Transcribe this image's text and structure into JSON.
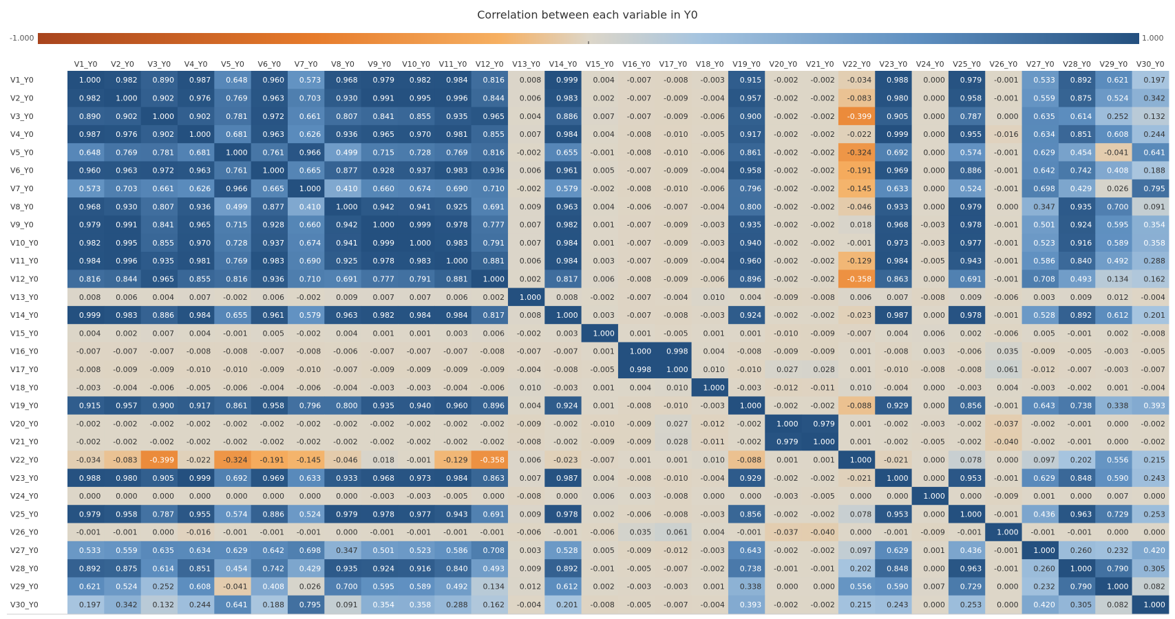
{
  "chart_data": {
    "type": "heatmap",
    "title": "Correlation between each variable in Y0",
    "legend": {
      "min_label": "-1.000",
      "max_label": "1.000",
      "min": -1,
      "max": 1,
      "placement": "top",
      "colors": {
        "negative": "#b5532a",
        "mid": "#ddd6c8",
        "positive": "#2b5b8f"
      }
    },
    "grid": false,
    "x_categories": [
      "V1_Y0",
      "V2_Y0",
      "V3_Y0",
      "V4_Y0",
      "V5_Y0",
      "V6_Y0",
      "V7_Y0",
      "V8_Y0",
      "V9_Y0",
      "V10_Y0",
      "V11_Y0",
      "V12_Y0",
      "V13_Y0",
      "V14_Y0",
      "V15_Y0",
      "V16_Y0",
      "V17_Y0",
      "V18_Y0",
      "V19_Y0",
      "V20_Y0",
      "V21_Y0",
      "V22_Y0",
      "V23_Y0",
      "V24_Y0",
      "V25_Y0",
      "V26_Y0",
      "V27_Y0",
      "V28_Y0",
      "V29_Y0",
      "V30_Y0"
    ],
    "y_categories": [
      "V1_Y0",
      "V2_Y0",
      "V3_Y0",
      "V4_Y0",
      "V5_Y0",
      "V6_Y0",
      "V7_Y0",
      "V8_Y0",
      "V9_Y0",
      "V10_Y0",
      "V11_Y0",
      "V12_Y0",
      "V13_Y0",
      "V14_Y0",
      "V15_Y0",
      "V16_Y0",
      "V17_Y0",
      "V18_Y0",
      "V19_Y0",
      "V20_Y0",
      "V21_Y0",
      "V22_Y0",
      "V23_Y0",
      "V24_Y0",
      "V25_Y0",
      "V26_Y0",
      "V27_Y0",
      "V28_Y0",
      "V29_Y0",
      "V30_Y0"
    ],
    "values": [
      [
        1.0,
        0.982,
        0.89,
        0.987,
        0.648,
        0.96,
        0.573,
        0.968,
        0.979,
        0.982,
        0.984,
        0.816,
        0.008,
        0.999,
        0.004,
        -0.007,
        -0.008,
        -0.003,
        0.915,
        -0.002,
        -0.002,
        -0.034,
        0.988,
        0.0,
        0.979,
        -0.001,
        0.533,
        0.892,
        0.621,
        0.197
      ],
      [
        0.982,
        1.0,
        0.902,
        0.976,
        0.769,
        0.963,
        0.703,
        0.93,
        0.991,
        0.995,
        0.996,
        0.844,
        0.006,
        0.983,
        0.002,
        -0.007,
        -0.009,
        -0.004,
        0.957,
        -0.002,
        -0.002,
        -0.083,
        0.98,
        0.0,
        0.958,
        -0.001,
        0.559,
        0.875,
        0.524,
        0.342
      ],
      [
        0.89,
        0.902,
        1.0,
        0.902,
        0.781,
        0.972,
        0.661,
        0.807,
        0.841,
        0.855,
        0.935,
        0.965,
        0.004,
        0.886,
        0.007,
        -0.007,
        -0.009,
        -0.006,
        0.9,
        -0.002,
        -0.002,
        -0.399,
        0.905,
        0.0,
        0.787,
        0.0,
        0.635,
        0.614,
        0.252,
        0.132
      ],
      [
        0.987,
        0.976,
        0.902,
        1.0,
        0.681,
        0.963,
        0.626,
        0.936,
        0.965,
        0.97,
        0.981,
        0.855,
        0.007,
        0.984,
        0.004,
        -0.008,
        -0.01,
        -0.005,
        0.917,
        -0.002,
        -0.002,
        -0.022,
        0.999,
        0.0,
        0.955,
        -0.016,
        0.634,
        0.851,
        0.608,
        0.244
      ],
      [
        0.648,
        0.769,
        0.781,
        0.681,
        1.0,
        0.761,
        0.966,
        0.499,
        0.715,
        0.728,
        0.769,
        0.816,
        -0.002,
        0.655,
        -0.001,
        -0.008,
        -0.01,
        -0.006,
        0.861,
        -0.002,
        -0.002,
        -0.324,
        0.692,
        0.0,
        0.574,
        -0.001,
        0.629,
        0.454,
        -0.041,
        0.641
      ],
      [
        0.96,
        0.963,
        0.972,
        0.963,
        0.761,
        1.0,
        0.665,
        0.877,
        0.928,
        0.937,
        0.983,
        0.936,
        0.006,
        0.961,
        0.005,
        -0.007,
        -0.009,
        -0.004,
        0.958,
        -0.002,
        -0.002,
        -0.191,
        0.969,
        0.0,
        0.886,
        -0.001,
        0.642,
        0.742,
        0.408,
        0.188
      ],
      [
        0.573,
        0.703,
        0.661,
        0.626,
        0.966,
        0.665,
        1.0,
        0.41,
        0.66,
        0.674,
        0.69,
        0.71,
        -0.002,
        0.579,
        -0.002,
        -0.008,
        -0.01,
        -0.006,
        0.796,
        -0.002,
        -0.002,
        -0.145,
        0.633,
        0.0,
        0.524,
        -0.001,
        0.698,
        0.429,
        0.026,
        0.795
      ],
      [
        0.968,
        0.93,
        0.807,
        0.936,
        0.499,
        0.877,
        0.41,
        1.0,
        0.942,
        0.941,
        0.925,
        0.691,
        0.009,
        0.963,
        0.004,
        -0.006,
        -0.007,
        -0.004,
        0.8,
        -0.002,
        -0.002,
        -0.046,
        0.933,
        0.0,
        0.979,
        0.0,
        0.347,
        0.935,
        0.7,
        0.091
      ],
      [
        0.979,
        0.991,
        0.841,
        0.965,
        0.715,
        0.928,
        0.66,
        0.942,
        1.0,
        0.999,
        0.978,
        0.777,
        0.007,
        0.982,
        0.001,
        -0.007,
        -0.009,
        -0.003,
        0.935,
        -0.002,
        -0.002,
        0.018,
        0.968,
        -0.003,
        0.978,
        -0.001,
        0.501,
        0.924,
        0.595,
        0.354
      ],
      [
        0.982,
        0.995,
        0.855,
        0.97,
        0.728,
        0.937,
        0.674,
        0.941,
        0.999,
        1.0,
        0.983,
        0.791,
        0.007,
        0.984,
        0.001,
        -0.007,
        -0.009,
        -0.003,
        0.94,
        -0.002,
        -0.002,
        -0.001,
        0.973,
        -0.003,
        0.977,
        -0.001,
        0.523,
        0.916,
        0.589,
        0.358
      ],
      [
        0.984,
        0.996,
        0.935,
        0.981,
        0.769,
        0.983,
        0.69,
        0.925,
        0.978,
        0.983,
        1.0,
        0.881,
        0.006,
        0.984,
        0.003,
        -0.007,
        -0.009,
        -0.004,
        0.96,
        -0.002,
        -0.002,
        -0.129,
        0.984,
        -0.005,
        0.943,
        -0.001,
        0.586,
        0.84,
        0.492,
        0.288
      ],
      [
        0.816,
        0.844,
        0.965,
        0.855,
        0.816,
        0.936,
        0.71,
        0.691,
        0.777,
        0.791,
        0.881,
        1.0,
        0.002,
        0.817,
        0.006,
        -0.008,
        -0.009,
        -0.006,
        0.896,
        -0.002,
        -0.002,
        -0.358,
        0.863,
        0.0,
        0.691,
        -0.001,
        0.708,
        0.493,
        0.134,
        0.162
      ],
      [
        0.008,
        0.006,
        0.004,
        0.007,
        -0.002,
        0.006,
        -0.002,
        0.009,
        0.007,
        0.007,
        0.006,
        0.002,
        1.0,
        0.008,
        -0.002,
        -0.007,
        -0.004,
        0.01,
        0.004,
        -0.009,
        -0.008,
        0.006,
        0.007,
        -0.008,
        0.009,
        -0.006,
        0.003,
        0.009,
        0.012,
        -0.004
      ],
      [
        0.999,
        0.983,
        0.886,
        0.984,
        0.655,
        0.961,
        0.579,
        0.963,
        0.982,
        0.984,
        0.984,
        0.817,
        0.008,
        1.0,
        0.003,
        -0.007,
        -0.008,
        -0.003,
        0.924,
        -0.002,
        -0.002,
        -0.023,
        0.987,
        0.0,
        0.978,
        -0.001,
        0.528,
        0.892,
        0.612,
        0.201
      ],
      [
        0.004,
        0.002,
        0.007,
        0.004,
        -0.001,
        0.005,
        -0.002,
        0.004,
        0.001,
        0.001,
        0.003,
        0.006,
        -0.002,
        0.003,
        1.0,
        0.001,
        -0.005,
        0.001,
        0.001,
        -0.01,
        -0.009,
        -0.007,
        0.004,
        0.006,
        0.002,
        -0.006,
        0.005,
        -0.001,
        0.002,
        -0.008
      ],
      [
        -0.007,
        -0.007,
        -0.007,
        -0.008,
        -0.008,
        -0.007,
        -0.008,
        -0.006,
        -0.007,
        -0.007,
        -0.007,
        -0.008,
        -0.007,
        -0.007,
        0.001,
        1.0,
        0.998,
        0.004,
        -0.008,
        -0.009,
        -0.009,
        0.001,
        -0.008,
        0.003,
        -0.006,
        0.035,
        -0.009,
        -0.005,
        -0.003,
        -0.005
      ],
      [
        -0.008,
        -0.009,
        -0.009,
        -0.01,
        -0.01,
        -0.009,
        -0.01,
        -0.007,
        -0.009,
        -0.009,
        -0.009,
        -0.009,
        -0.004,
        -0.008,
        -0.005,
        0.998,
        1.0,
        0.01,
        -0.01,
        0.027,
        0.028,
        0.001,
        -0.01,
        -0.008,
        -0.008,
        0.061,
        -0.012,
        -0.007,
        -0.003,
        -0.007
      ],
      [
        -0.003,
        -0.004,
        -0.006,
        -0.005,
        -0.006,
        -0.004,
        -0.006,
        -0.004,
        -0.003,
        -0.003,
        -0.004,
        -0.006,
        0.01,
        -0.003,
        0.001,
        0.004,
        0.01,
        1.0,
        -0.003,
        -0.012,
        -0.011,
        0.01,
        -0.004,
        0.0,
        -0.003,
        0.004,
        -0.003,
        -0.002,
        0.001,
        -0.004
      ],
      [
        0.915,
        0.957,
        0.9,
        0.917,
        0.861,
        0.958,
        0.796,
        0.8,
        0.935,
        0.94,
        0.96,
        0.896,
        0.004,
        0.924,
        0.001,
        -0.008,
        -0.01,
        -0.003,
        1.0,
        -0.002,
        -0.002,
        -0.088,
        0.929,
        0.0,
        0.856,
        -0.001,
        0.643,
        0.738,
        0.338,
        0.393
      ],
      [
        -0.002,
        -0.002,
        -0.002,
        -0.002,
        -0.002,
        -0.002,
        -0.002,
        -0.002,
        -0.002,
        -0.002,
        -0.002,
        -0.002,
        -0.009,
        -0.002,
        -0.01,
        -0.009,
        0.027,
        -0.012,
        -0.002,
        1.0,
        0.979,
        0.001,
        -0.002,
        -0.003,
        -0.002,
        -0.037,
        -0.002,
        -0.001,
        0.0,
        -0.002
      ],
      [
        -0.002,
        -0.002,
        -0.002,
        -0.002,
        -0.002,
        -0.002,
        -0.002,
        -0.002,
        -0.002,
        -0.002,
        -0.002,
        -0.002,
        -0.008,
        -0.002,
        -0.009,
        -0.009,
        0.028,
        -0.011,
        -0.002,
        0.979,
        1.0,
        0.001,
        -0.002,
        -0.005,
        -0.002,
        -0.04,
        -0.002,
        -0.001,
        0.0,
        -0.002
      ],
      [
        -0.034,
        -0.083,
        -0.399,
        -0.022,
        -0.324,
        -0.191,
        -0.145,
        -0.046,
        0.018,
        -0.001,
        -0.129,
        -0.358,
        0.006,
        -0.023,
        -0.007,
        0.001,
        0.001,
        0.01,
        -0.088,
        0.001,
        0.001,
        1.0,
        -0.021,
        0.0,
        0.078,
        0.0,
        0.097,
        0.202,
        0.556,
        0.215
      ],
      [
        0.988,
        0.98,
        0.905,
        0.999,
        0.692,
        0.969,
        0.633,
        0.933,
        0.968,
        0.973,
        0.984,
        0.863,
        0.007,
        0.987,
        0.004,
        -0.008,
        -0.01,
        -0.004,
        0.929,
        -0.002,
        -0.002,
        -0.021,
        1.0,
        0.0,
        0.953,
        -0.001,
        0.629,
        0.848,
        0.59,
        0.243
      ],
      [
        0.0,
        0.0,
        0.0,
        0.0,
        0.0,
        0.0,
        0.0,
        0.0,
        -0.003,
        -0.003,
        -0.005,
        0.0,
        -0.008,
        0.0,
        0.006,
        0.003,
        -0.008,
        0.0,
        0.0,
        -0.003,
        -0.005,
        0.0,
        0.0,
        1.0,
        0.0,
        -0.009,
        0.001,
        0.0,
        0.007,
        0.0
      ],
      [
        0.979,
        0.958,
        0.787,
        0.955,
        0.574,
        0.886,
        0.524,
        0.979,
        0.978,
        0.977,
        0.943,
        0.691,
        0.009,
        0.978,
        0.002,
        -0.006,
        -0.008,
        -0.003,
        0.856,
        -0.002,
        -0.002,
        0.078,
        0.953,
        0.0,
        1.0,
        -0.001,
        0.436,
        0.963,
        0.729,
        0.253
      ],
      [
        -0.001,
        -0.001,
        0.0,
        -0.016,
        -0.001,
        -0.001,
        -0.001,
        0.0,
        -0.001,
        -0.001,
        -0.001,
        -0.001,
        -0.006,
        -0.001,
        -0.006,
        0.035,
        0.061,
        0.004,
        -0.001,
        -0.037,
        -0.04,
        0.0,
        -0.001,
        -0.009,
        -0.001,
        1.0,
        -0.001,
        -0.001,
        0.0,
        0.0
      ],
      [
        0.533,
        0.559,
        0.635,
        0.634,
        0.629,
        0.642,
        0.698,
        0.347,
        0.501,
        0.523,
        0.586,
        0.708,
        0.003,
        0.528,
        0.005,
        -0.009,
        -0.012,
        -0.003,
        0.643,
        -0.002,
        -0.002,
        0.097,
        0.629,
        0.001,
        0.436,
        -0.001,
        1.0,
        0.26,
        0.232,
        0.42
      ],
      [
        0.892,
        0.875,
        0.614,
        0.851,
        0.454,
        0.742,
        0.429,
        0.935,
        0.924,
        0.916,
        0.84,
        0.493,
        0.009,
        0.892,
        -0.001,
        -0.005,
        -0.007,
        -0.002,
        0.738,
        -0.001,
        -0.001,
        0.202,
        0.848,
        0.0,
        0.963,
        -0.001,
        0.26,
        1.0,
        0.79,
        0.305
      ],
      [
        0.621,
        0.524,
        0.252,
        0.608,
        -0.041,
        0.408,
        0.026,
        0.7,
        0.595,
        0.589,
        0.492,
        0.134,
        0.012,
        0.612,
        0.002,
        -0.003,
        -0.003,
        0.001,
        0.338,
        0.0,
        0.0,
        0.556,
        0.59,
        0.007,
        0.729,
        0.0,
        0.232,
        0.79,
        1.0,
        0.082
      ],
      [
        0.197,
        0.342,
        0.132,
        0.244,
        0.641,
        0.188,
        0.795,
        0.091,
        0.354,
        0.358,
        0.288,
        0.162,
        -0.004,
        0.201,
        -0.008,
        -0.005,
        -0.007,
        -0.004,
        0.393,
        -0.002,
        -0.002,
        0.215,
        0.243,
        0.0,
        0.253,
        0.0,
        0.42,
        0.305,
        0.082,
        1.0
      ]
    ]
  }
}
